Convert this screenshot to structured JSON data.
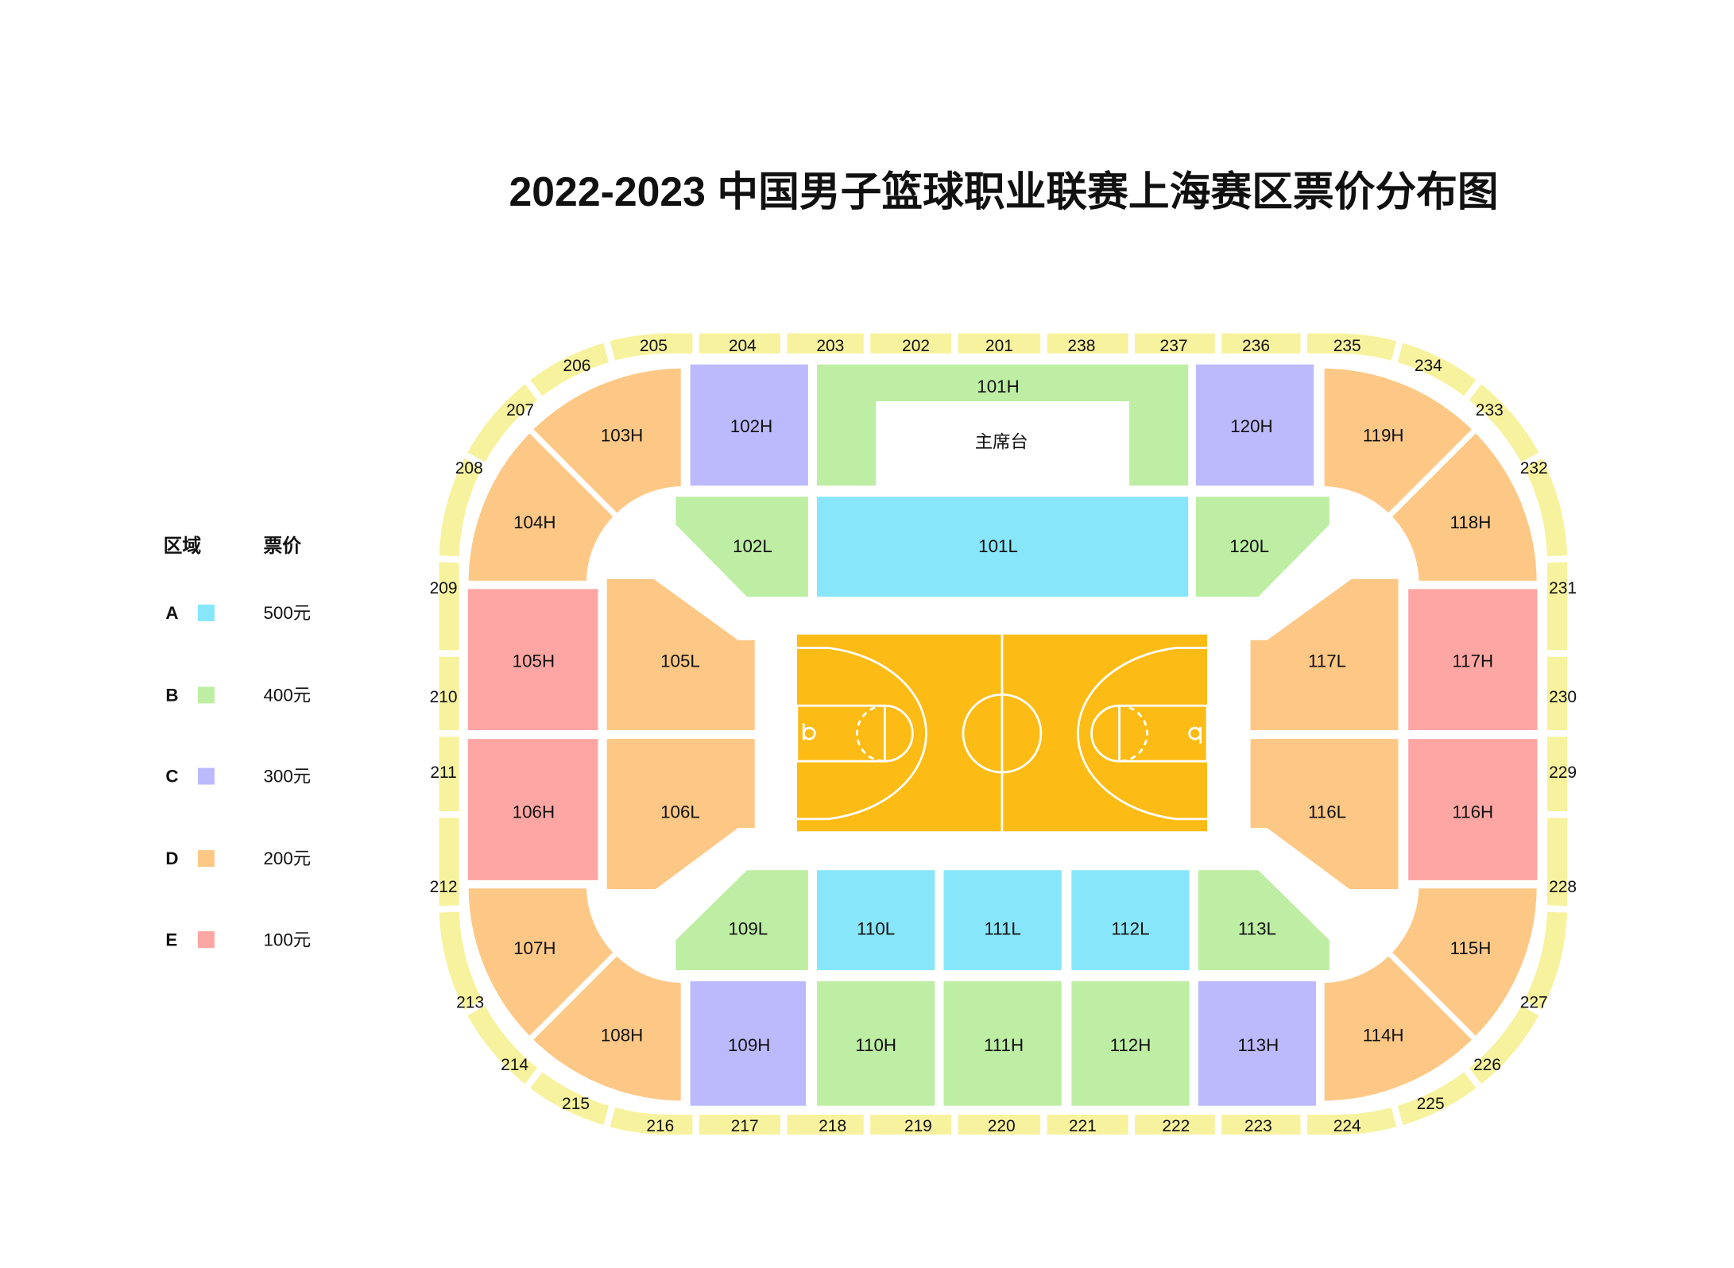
{
  "title": "2022-2023 中国男子篮球职业联赛上海赛区票价分布图",
  "legend": {
    "zone_header": "区域",
    "price_header": "票价",
    "items": [
      {
        "zone": "A",
        "color": "#88e6fb",
        "price": "500元"
      },
      {
        "zone": "B",
        "color": "#bdeea3",
        "price": "400元"
      },
      {
        "zone": "C",
        "color": "#bcbafd",
        "price": "300元"
      },
      {
        "zone": "D",
        "color": "#fdc886",
        "price": "200元"
      },
      {
        "zone": "E",
        "color": "#fea6a3",
        "price": "100元"
      }
    ]
  },
  "colors": {
    "ring": "#f7f29e",
    "court": "#fdbb15",
    "court_lines": "#ffffff"
  },
  "vip_box_label": "主席台",
  "sections": [
    {
      "id": "101H",
      "zone": "B"
    },
    {
      "id": "102H",
      "zone": "C"
    },
    {
      "id": "120H",
      "zone": "C"
    },
    {
      "id": "101L",
      "zone": "A"
    },
    {
      "id": "102L",
      "zone": "B"
    },
    {
      "id": "120L",
      "zone": "B"
    },
    {
      "id": "103H",
      "zone": "D"
    },
    {
      "id": "104H",
      "zone": "D"
    },
    {
      "id": "119H",
      "zone": "D"
    },
    {
      "id": "118H",
      "zone": "D"
    },
    {
      "id": "107H",
      "zone": "D"
    },
    {
      "id": "108H",
      "zone": "D"
    },
    {
      "id": "115H",
      "zone": "D"
    },
    {
      "id": "114H",
      "zone": "D"
    },
    {
      "id": "105H",
      "zone": "E"
    },
    {
      "id": "106H",
      "zone": "E"
    },
    {
      "id": "117H",
      "zone": "E"
    },
    {
      "id": "116H",
      "zone": "E"
    },
    {
      "id": "105L",
      "zone": "D"
    },
    {
      "id": "106L",
      "zone": "D"
    },
    {
      "id": "117L",
      "zone": "D"
    },
    {
      "id": "116L",
      "zone": "D"
    },
    {
      "id": "109L",
      "zone": "B"
    },
    {
      "id": "110L",
      "zone": "A"
    },
    {
      "id": "111L",
      "zone": "A"
    },
    {
      "id": "112L",
      "zone": "A"
    },
    {
      "id": "113L",
      "zone": "B"
    },
    {
      "id": "109H",
      "zone": "C"
    },
    {
      "id": "110H",
      "zone": "B"
    },
    {
      "id": "111H",
      "zone": "B"
    },
    {
      "id": "112H",
      "zone": "B"
    },
    {
      "id": "113H",
      "zone": "C"
    }
  ],
  "upper_sections": [
    "201",
    "202",
    "203",
    "204",
    "205",
    "206",
    "207",
    "208",
    "209",
    "210",
    "211",
    "212",
    "213",
    "214",
    "215",
    "216",
    "217",
    "218",
    "219",
    "220",
    "221",
    "222",
    "223",
    "224",
    "225",
    "226",
    "227",
    "228",
    "229",
    "230",
    "231",
    "232",
    "233",
    "234",
    "235",
    "236",
    "237",
    "238"
  ]
}
